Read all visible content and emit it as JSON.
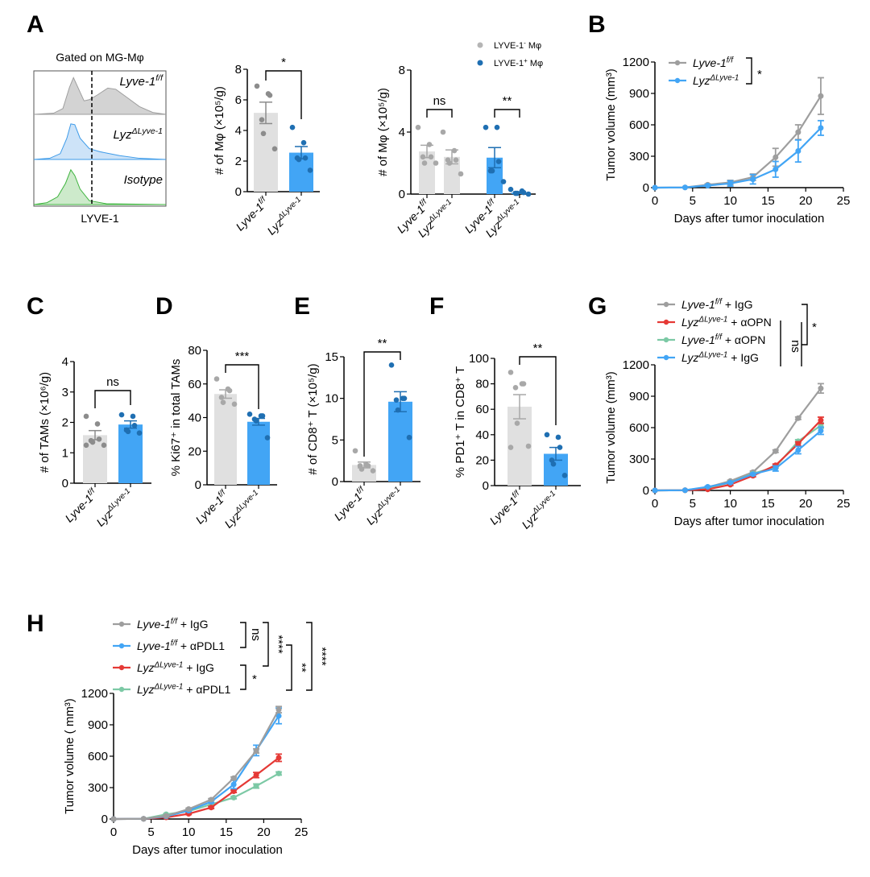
{
  "figure": {
    "panel_labels": [
      "A",
      "B",
      "C",
      "D",
      "E",
      "F",
      "G",
      "H"
    ]
  },
  "chart_data": [
    {
      "id": "A1",
      "type": "histogram-overlay",
      "title": "Gated on MG-Mφ",
      "xlabel": "LYVE-1",
      "tracks": [
        {
          "name": "Lyve-1",
          "sup": "f/f",
          "color": "#9e9e9e",
          "fill": "#d3d3d3"
        },
        {
          "name": "Lyz",
          "sup": "ΔLyve-1",
          "color": "#3d9be9",
          "fill": "#cde3f8"
        },
        {
          "name": "Isotype",
          "sup": "",
          "color": "#3fb43f",
          "fill": "#cdeacb"
        }
      ],
      "gate": "dashed vertical line"
    },
    {
      "id": "A2",
      "type": "bar",
      "ylabel": "# of Mφ (×10⁵/g)",
      "ylim": [
        0,
        8
      ],
      "yticks": [
        0,
        2,
        4,
        6,
        8
      ],
      "categories": [
        {
          "name": "Lyve-1",
          "sup": "f/f"
        },
        {
          "name": "Lyz",
          "sup": "ΔLyve-1"
        }
      ],
      "values": [
        5.15,
        2.55
      ],
      "sem": [
        0.7,
        0.4
      ],
      "points": [
        [
          6.9,
          6.4,
          6.3,
          4.7,
          3.8,
          2.8
        ],
        [
          4.2,
          3.2,
          2.2,
          2.2,
          2.1,
          1.4
        ]
      ],
      "colors": [
        "#e0e0e0",
        "#42a5f5"
      ],
      "dot_colors": [
        "#8c8c8c",
        "#1f6fb2"
      ],
      "significance": [
        {
          "from": 0,
          "to": 1,
          "label": "*"
        }
      ]
    },
    {
      "id": "A3",
      "type": "bar",
      "ylabel": "# of Mφ (×10⁵/g)",
      "ylim": [
        0,
        8
      ],
      "yticks": [
        0,
        4,
        8
      ],
      "legend": [
        {
          "label": "LYVE-1",
          "sup": "-",
          "suffix": " Mφ",
          "color": "#b5b5b5"
        },
        {
          "label": "LYVE-1",
          "sup": "+",
          "suffix": " Mφ",
          "color": "#1f6fb2"
        }
      ],
      "categories": [
        {
          "name": "Lyve-1",
          "sup": "f/f"
        },
        {
          "name": "Lyz",
          "sup": "ΔLyve-1"
        },
        {
          "name": "Lyve-1",
          "sup": "f/f"
        },
        {
          "name": "Lyz",
          "sup": "ΔLyve-1"
        }
      ],
      "values": [
        2.75,
        2.4,
        2.35,
        0.1
      ],
      "sem": [
        0.4,
        0.45,
        0.65,
        0.05
      ],
      "points": [
        [
          4.3,
          3.2,
          2.4,
          2.4,
          2.0,
          2.0
        ],
        [
          4.0,
          2.8,
          2.2,
          2.2,
          2.0,
          1.3
        ],
        [
          4.3,
          4.3,
          2.1,
          1.5,
          1.5,
          0.8
        ],
        [
          0.3,
          0.2,
          0.1,
          0.05,
          0.05,
          0.0
        ]
      ],
      "colors": [
        "#e0e0e0",
        "#e0e0e0",
        "#42a5f5",
        "#42a5f5"
      ],
      "dot_colors": [
        "#a8a8a8",
        "#a8a8a8",
        "#1f6fb2",
        "#1f6fb2"
      ],
      "significance": [
        {
          "from": 0,
          "to": 1,
          "label": "ns"
        },
        {
          "from": 2,
          "to": 3,
          "label": "**"
        }
      ]
    },
    {
      "id": "B",
      "type": "line",
      "xlabel": "Days after tumor inoculation",
      "ylabel": "Tumor volume (mm³)",
      "xlim": [
        0,
        25
      ],
      "ylim": [
        0,
        1200
      ],
      "xticks": [
        0,
        5,
        10,
        15,
        20,
        25
      ],
      "yticks": [
        0,
        300,
        600,
        900,
        1200
      ],
      "x": [
        0,
        4,
        7,
        10,
        13,
        16,
        19,
        22
      ],
      "series": [
        {
          "name": "Lyve-1",
          "sup": "f/f",
          "color": "#9e9e9e",
          "values": [
            0,
            2,
            28,
            50,
            100,
            290,
            530,
            875
          ],
          "sem": [
            0,
            2,
            8,
            20,
            30,
            85,
            70,
            175
          ]
        },
        {
          "name": "Lyz",
          "sup": "ΔLyve-1",
          "color": "#42a5f5",
          "values": [
            0,
            2,
            20,
            40,
            80,
            175,
            350,
            570
          ],
          "sem": [
            0,
            2,
            8,
            25,
            45,
            75,
            105,
            70
          ]
        }
      ],
      "significance": [
        {
          "series": [
            0,
            1
          ],
          "label": "*"
        }
      ]
    },
    {
      "id": "C",
      "type": "bar",
      "ylabel": "# of TAMs (×10⁶/g)",
      "ylim": [
        0,
        4
      ],
      "yticks": [
        0,
        1,
        2,
        3,
        4
      ],
      "categories": [
        {
          "name": "Lyve-1",
          "sup": "f/f"
        },
        {
          "name": "Lyz",
          "sup": "ΔLyve-1"
        }
      ],
      "values": [
        1.58,
        1.93
      ],
      "sem": [
        0.15,
        0.12
      ],
      "points": [
        [
          2.2,
          1.95,
          1.45,
          1.4,
          1.35,
          1.25,
          1.25
        ],
        [
          2.25,
          2.2,
          1.9,
          1.75,
          1.7,
          1.65
        ]
      ],
      "colors": [
        "#e0e0e0",
        "#42a5f5"
      ],
      "dot_colors": [
        "#8c8c8c",
        "#1f6fb2"
      ],
      "significance": [
        {
          "from": 0,
          "to": 1,
          "label": "ns"
        }
      ]
    },
    {
      "id": "D",
      "type": "bar",
      "ylabel": "% Ki67⁺ in total TAMs",
      "ylim": [
        0,
        80
      ],
      "yticks": [
        0,
        20,
        40,
        60,
        80
      ],
      "categories": [
        {
          "name": "Lyve-1",
          "sup": "f/f"
        },
        {
          "name": "Lyz",
          "sup": "ΔLyve-1"
        }
      ],
      "values": [
        54,
        37.5
      ],
      "sem": [
        2.5,
        2
      ],
      "points": [
        [
          63,
          57,
          56,
          52,
          49,
          48
        ],
        [
          42,
          41,
          41,
          39,
          38,
          28
        ]
      ],
      "colors": [
        "#e0e0e0",
        "#42a5f5"
      ],
      "dot_colors": [
        "#a8a8a8",
        "#1f6fb2"
      ],
      "significance": [
        {
          "from": 0,
          "to": 1,
          "label": "***"
        }
      ]
    },
    {
      "id": "E",
      "type": "bar",
      "ylabel": "# of CD8⁺ T (×10⁵/g)",
      "ylim": [
        0,
        15
      ],
      "yticks": [
        0,
        5,
        10,
        15
      ],
      "categories": [
        {
          "name": "Lyve-1",
          "sup": "f/f"
        },
        {
          "name": "Lyz",
          "sup": "ΔLyve-1"
        }
      ],
      "values": [
        2.0,
        9.6
      ],
      "sem": [
        0.35,
        1.2
      ],
      "points": [
        [
          3.7,
          2.0,
          1.9,
          1.9,
          1.5,
          1.3
        ],
        [
          14.0,
          10.0,
          10.0,
          9.8,
          8.6,
          5.3
        ]
      ],
      "colors": [
        "#e0e0e0",
        "#42a5f5"
      ],
      "dot_colors": [
        "#a8a8a8",
        "#1f6fb2"
      ],
      "significance": [
        {
          "from": 0,
          "to": 1,
          "label": "**"
        }
      ]
    },
    {
      "id": "F",
      "type": "bar",
      "ylabel": "% PD1⁺ T in CD8⁺ T",
      "ylim": [
        0,
        100
      ],
      "yticks": [
        0,
        20,
        40,
        60,
        80,
        100
      ],
      "categories": [
        {
          "name": "Lyve-1",
          "sup": "f/f"
        },
        {
          "name": "Lyz",
          "sup": "ΔLyve-1"
        }
      ],
      "values": [
        62,
        25
      ],
      "sem": [
        9.5,
        5
      ],
      "points": [
        [
          89,
          80,
          80,
          77,
          49,
          31,
          30
        ],
        [
          40,
          38,
          30,
          20,
          17,
          8
        ]
      ],
      "colors": [
        "#e0e0e0",
        "#42a5f5"
      ],
      "dot_colors": [
        "#a8a8a8",
        "#1f6fb2"
      ],
      "significance": [
        {
          "from": 0,
          "to": 1,
          "label": "**"
        }
      ]
    },
    {
      "id": "G",
      "type": "line",
      "xlabel": "Days after tumor inoculation",
      "ylabel": "Tumor volume (mm³)",
      "xlim": [
        0,
        25
      ],
      "ylim": [
        0,
        1200
      ],
      "xticks": [
        0,
        5,
        10,
        15,
        20,
        25
      ],
      "yticks": [
        0,
        300,
        600,
        900,
        1200
      ],
      "x": [
        0,
        4,
        7,
        10,
        13,
        16,
        19,
        22
      ],
      "series": [
        {
          "name": "Lyve-1",
          "sup": "f/f",
          "suffix": " + IgG",
          "color": "#9e9e9e",
          "values": [
            0,
            2,
            30,
            90,
            175,
            375,
            690,
            975
          ],
          "sem": [
            0,
            2,
            5,
            8,
            10,
            12,
            12,
            45
          ]
        },
        {
          "name": "Lyz",
          "sup": "ΔLyve-1",
          "suffix": " + αOPN",
          "color": "#e53935",
          "values": [
            0,
            2,
            10,
            55,
            140,
            240,
            445,
            670
          ],
          "sem": [
            0,
            2,
            4,
            8,
            10,
            12,
            20,
            30
          ]
        },
        {
          "name": "Lyve-1",
          "sup": "f/f",
          "suffix": " + αOPN",
          "color": "#7cc9a5",
          "values": [
            0,
            2,
            25,
            75,
            160,
            225,
            470,
            620
          ],
          "sem": [
            0,
            2,
            5,
            8,
            10,
            12,
            15,
            25
          ]
        },
        {
          "name": "Lyz",
          "sup": "ΔLyve-1",
          "suffix": " + IgG",
          "color": "#42a5f5",
          "values": [
            0,
            2,
            35,
            75,
            155,
            210,
            385,
            570
          ],
          "sem": [
            0,
            2,
            6,
            8,
            10,
            25,
            35,
            35
          ]
        }
      ],
      "significance": [
        {
          "label": "ns"
        },
        {
          "label": "*"
        }
      ]
    },
    {
      "id": "H",
      "type": "line",
      "xlabel": "Days after tumor inoculation",
      "ylabel": "Tumor volume ( mm³)",
      "xlim": [
        0,
        25
      ],
      "ylim": [
        0,
        1200
      ],
      "xticks": [
        0,
        5,
        10,
        15,
        20,
        25
      ],
      "yticks": [
        0,
        300,
        600,
        900,
        1200
      ],
      "x": [
        0,
        4,
        7,
        10,
        13,
        16,
        19,
        22
      ],
      "series": [
        {
          "name": "Lyve-1",
          "sup": "f/f",
          "suffix": " + IgG",
          "color": "#9e9e9e",
          "values": [
            0,
            2,
            30,
            95,
            185,
            390,
            650,
            1045
          ],
          "sem": [
            0,
            2,
            5,
            8,
            10,
            12,
            20,
            30
          ]
        },
        {
          "name": "Lyve-1",
          "sup": "f/f",
          "suffix": " + αPDL1",
          "color": "#42a5f5",
          "values": [
            0,
            2,
            25,
            80,
            165,
            330,
            655,
            985
          ],
          "sem": [
            0,
            2,
            5,
            8,
            10,
            40,
            50,
            75
          ]
        },
        {
          "name": "Lyz",
          "sup": "ΔLyve-1",
          "suffix": " + IgG",
          "color": "#e53935",
          "values": [
            0,
            2,
            15,
            50,
            110,
            265,
            420,
            585
          ],
          "sem": [
            0,
            2,
            5,
            8,
            10,
            12,
            25,
            35
          ]
        },
        {
          "name": "Lyz",
          "sup": "ΔLyve-1",
          "suffix": " + αPDL1",
          "color": "#7cc9a5",
          "values": [
            0,
            2,
            45,
            75,
            140,
            205,
            315,
            435
          ],
          "sem": [
            0,
            2,
            5,
            8,
            10,
            12,
            20,
            15
          ]
        }
      ],
      "significance": [
        {
          "series": [
            0,
            1
          ],
          "label": "ns"
        },
        {
          "series": [
            2,
            3
          ],
          "label": "*"
        },
        {
          "series": [
            0,
            2
          ],
          "label": "****"
        },
        {
          "series": [
            1,
            3
          ],
          "label": "**"
        },
        {
          "series": [
            0,
            3
          ],
          "label": "****"
        }
      ]
    }
  ]
}
